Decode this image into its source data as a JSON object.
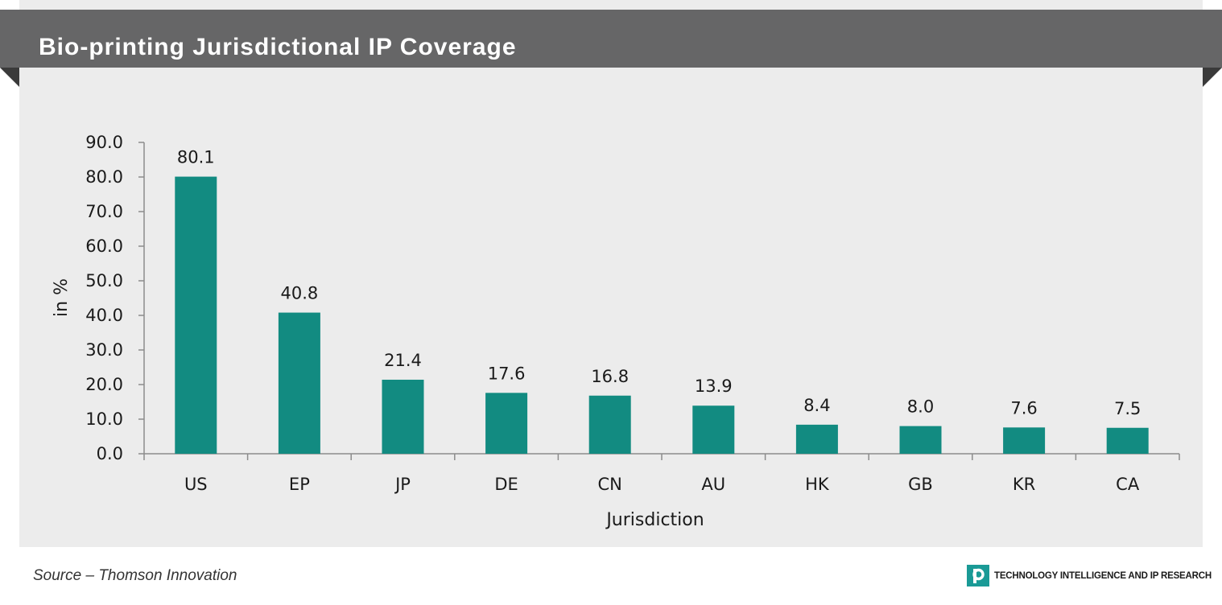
{
  "header": {
    "title": "Bio-printing Jurisdictional IP Coverage"
  },
  "footer": {
    "source": "Source – Thomson Innovation",
    "brand_text": "TECHNOLOGY INTELLIGENCE AND IP RESEARCH",
    "brand_icon": "p-logo-icon"
  },
  "colors": {
    "banner": "#666667",
    "panel": "#ececec",
    "bar": "#128b81",
    "brand": "#1a9a96"
  },
  "chart_data": {
    "type": "bar",
    "title": "",
    "xlabel": "Jurisdiction",
    "ylabel": "in %",
    "categories": [
      "US",
      "EP",
      "JP",
      "DE",
      "CN",
      "AU",
      "HK",
      "GB",
      "KR",
      "CA"
    ],
    "values": [
      80.1,
      40.8,
      21.4,
      17.6,
      16.8,
      13.9,
      8.4,
      8.0,
      7.6,
      7.5
    ],
    "data_labels": [
      "80.1",
      "40.8",
      "21.4",
      "17.6",
      "16.8",
      "13.9",
      "8.4",
      "8.0",
      "7.6",
      "7.5"
    ],
    "ylim": [
      0,
      90
    ],
    "yticks": [
      "0.0",
      "10.0",
      "20.0",
      "30.0",
      "40.0",
      "50.0",
      "60.0",
      "70.0",
      "80.0",
      "90.0"
    ],
    "grid": false,
    "legend": "none"
  }
}
